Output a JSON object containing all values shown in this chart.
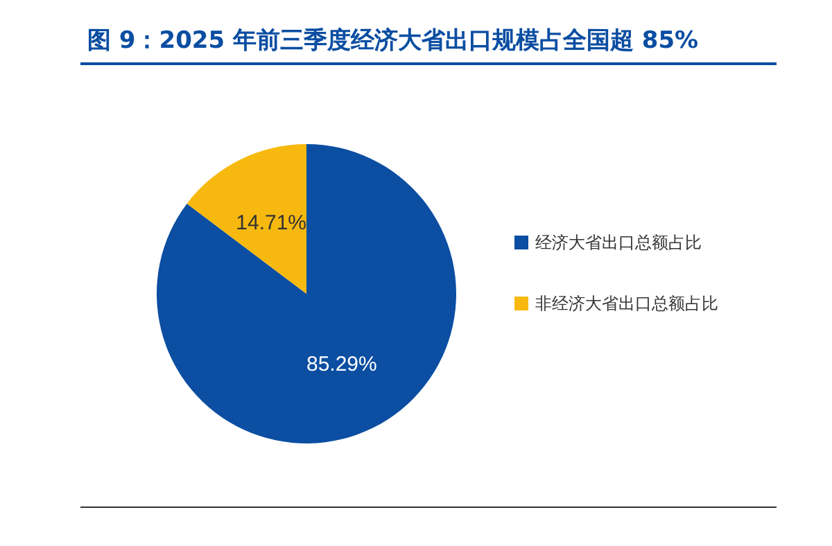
{
  "chart_data": {
    "type": "pie",
    "title": "图 9：2025 年前三季度经济大省出口规模占全国超 85%",
    "categories": [
      "经济大省出口总额占比",
      "非经济大省出口总额占比"
    ],
    "values": [
      85.29,
      14.71
    ],
    "colors": [
      "#0b4ea2",
      "#f7b90f"
    ],
    "value_labels": [
      "85.29%",
      "14.71%"
    ],
    "legend": "right"
  }
}
